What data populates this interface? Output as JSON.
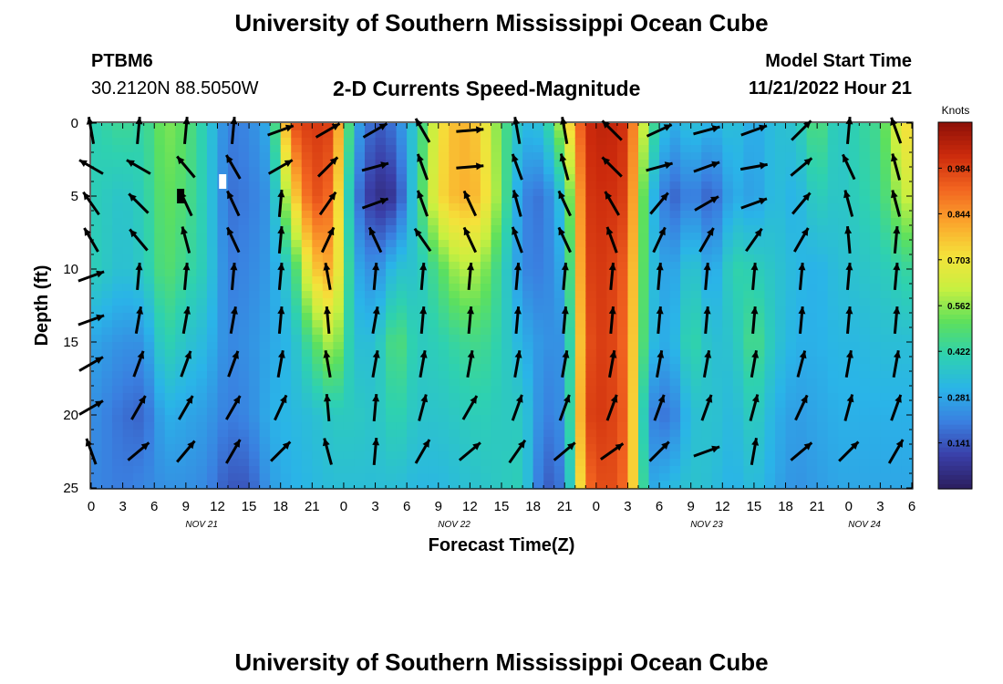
{
  "header": {
    "title": "University of Southern Mississippi Ocean Cube",
    "station_id": "PTBM6",
    "coordinates": "30.2120N  88.5050W",
    "plot_title": "2-D Currents Speed-Magnitude",
    "model_start_label": "Model Start Time",
    "model_start_value": "11/21/2022 Hour 21"
  },
  "footer": {
    "title": "University of Southern Mississippi Ocean Cube"
  },
  "chart_data": {
    "type": "heatmap",
    "title": "2-D Currents Speed-Magnitude",
    "xlabel": "Forecast Time(Z)",
    "ylabel": "Depth (ft)",
    "x_unit": "hours since model start (11/21/2022 Hour 21)",
    "x_tick_labels": [
      "0",
      "3",
      "6",
      "9",
      "12",
      "15",
      "18",
      "21",
      "0",
      "3",
      "6",
      "9",
      "12",
      "15",
      "18",
      "21",
      "0",
      "3",
      "6",
      "9",
      "12",
      "15",
      "18",
      "21",
      "0",
      "3",
      "6"
    ],
    "date_labels": [
      {
        "label": "NOV 21",
        "hour": 10.5
      },
      {
        "label": "NOV 22",
        "hour": 34.5
      },
      {
        "label": "NOV 23",
        "hour": 58.5
      },
      {
        "label": "NOV 24",
        "hour": 73.5
      }
    ],
    "xlim": [
      0,
      78
    ],
    "ylim": [
      0,
      25
    ],
    "y_ticks": [
      0,
      5,
      10,
      15,
      20,
      25
    ],
    "y_inverted": true,
    "colorbar": {
      "label": "Knots",
      "tick_labels": [
        "0.984",
        "0.844",
        "0.703",
        "0.562",
        "0.422",
        "0.281",
        "0.141"
      ],
      "range": [
        0.0,
        1.125
      ],
      "colors": [
        "#2b1e5e",
        "#3a3fa8",
        "#3a7fe0",
        "#2ab4e8",
        "#2ed1b0",
        "#5de05d",
        "#c8f040",
        "#f5e23a",
        "#fba42c",
        "#f26420",
        "#cc2a0c",
        "#8c1008"
      ]
    },
    "speed_anchor_hours": [
      0,
      3,
      5,
      7,
      9,
      11,
      13,
      15,
      17,
      19,
      21,
      23,
      25,
      27,
      29,
      31,
      33,
      35,
      37,
      39,
      41,
      43,
      45,
      47,
      49,
      51,
      53,
      55,
      57,
      59,
      61,
      63,
      65,
      67,
      69,
      71,
      73,
      75,
      77,
      78
    ],
    "speed_profiles_depths": [
      0,
      5,
      10,
      15,
      20,
      25
    ],
    "speed_profiles": [
      [
        0.4,
        0.4,
        0.4,
        0.28,
        0.24,
        0.22
      ],
      [
        0.45,
        0.36,
        0.34,
        0.24,
        0.18,
        0.2
      ],
      [
        0.42,
        0.4,
        0.38,
        0.24,
        0.16,
        0.22
      ],
      [
        0.55,
        0.52,
        0.5,
        0.42,
        0.3,
        0.24
      ],
      [
        0.5,
        0.48,
        0.44,
        0.36,
        0.28,
        0.24
      ],
      [
        0.38,
        0.38,
        0.38,
        0.32,
        0.26,
        0.22
      ],
      [
        0.2,
        0.18,
        0.2,
        0.22,
        0.2,
        0.14
      ],
      [
        0.22,
        0.2,
        0.22,
        0.24,
        0.22,
        0.14
      ],
      [
        0.3,
        0.25,
        0.26,
        0.28,
        0.3,
        0.26
      ],
      [
        0.95,
        0.7,
        0.4,
        0.32,
        0.32,
        0.3
      ],
      [
        1.0,
        0.97,
        0.75,
        0.48,
        0.34,
        0.32
      ],
      [
        0.98,
        0.9,
        0.82,
        0.62,
        0.38,
        0.34
      ],
      [
        0.3,
        0.22,
        0.3,
        0.34,
        0.38,
        0.34
      ],
      [
        0.14,
        0.05,
        0.22,
        0.34,
        0.36,
        0.34
      ],
      [
        0.2,
        0.08,
        0.35,
        0.5,
        0.42,
        0.34
      ],
      [
        0.4,
        0.42,
        0.36,
        0.38,
        0.36,
        0.32
      ],
      [
        0.7,
        0.72,
        0.48,
        0.4,
        0.36,
        0.32
      ],
      [
        0.8,
        0.8,
        0.6,
        0.44,
        0.38,
        0.34
      ],
      [
        0.75,
        0.78,
        0.58,
        0.46,
        0.4,
        0.36
      ],
      [
        0.5,
        0.52,
        0.42,
        0.4,
        0.38,
        0.38
      ],
      [
        0.32,
        0.22,
        0.22,
        0.3,
        0.38,
        0.4
      ],
      [
        0.35,
        0.18,
        0.2,
        0.24,
        0.2,
        0.14
      ],
      [
        0.65,
        0.38,
        0.3,
        0.24,
        0.24,
        0.2
      ],
      [
        1.02,
        1.0,
        0.98,
        0.95,
        0.98,
        0.9
      ],
      [
        1.05,
        1.02,
        1.0,
        1.0,
        1.0,
        0.98
      ],
      [
        1.0,
        0.98,
        0.92,
        0.9,
        0.92,
        0.9
      ],
      [
        0.5,
        0.36,
        0.36,
        0.34,
        0.22,
        0.28
      ],
      [
        0.28,
        0.15,
        0.25,
        0.28,
        0.18,
        0.32
      ],
      [
        0.35,
        0.22,
        0.38,
        0.44,
        0.34,
        0.36
      ],
      [
        0.3,
        0.15,
        0.26,
        0.34,
        0.36,
        0.34
      ],
      [
        0.35,
        0.3,
        0.42,
        0.36,
        0.32,
        0.3
      ],
      [
        0.28,
        0.26,
        0.4,
        0.48,
        0.4,
        0.34
      ],
      [
        0.34,
        0.34,
        0.36,
        0.36,
        0.3,
        0.28
      ],
      [
        0.36,
        0.3,
        0.32,
        0.3,
        0.26,
        0.24
      ],
      [
        0.5,
        0.4,
        0.3,
        0.3,
        0.28,
        0.26
      ],
      [
        0.36,
        0.36,
        0.34,
        0.32,
        0.3,
        0.28
      ],
      [
        0.42,
        0.4,
        0.36,
        0.32,
        0.3,
        0.28
      ],
      [
        0.46,
        0.44,
        0.38,
        0.34,
        0.3,
        0.28
      ],
      [
        0.7,
        0.6,
        0.42,
        0.34,
        0.3,
        0.28
      ],
      [
        0.74,
        0.64,
        0.44,
        0.34,
        0.3,
        0.28
      ]
    ],
    "vector_hours": [
      0,
      4.5,
      9,
      13.5,
      18,
      22.5,
      27,
      31.5,
      36,
      40.5,
      45,
      49.5,
      54,
      58.5,
      63,
      67.5,
      72,
      76.5
    ],
    "vector_depths": [
      0.5,
      3,
      5.5,
      8,
      10.5,
      13.5,
      16.5,
      19.5,
      22.5
    ],
    "vectors_deg": [
      [
        350,
        300,
        325,
        330,
        70,
        70,
        60,
        60,
        340
      ],
      [
        5,
        300,
        315,
        320,
        5,
        10,
        20,
        30,
        50
      ],
      [
        5,
        320,
        335,
        345,
        5,
        10,
        20,
        30,
        40
      ],
      [
        5,
        330,
        335,
        335,
        5,
        10,
        20,
        30,
        30
      ],
      [
        70,
        60,
        5,
        5,
        5,
        5,
        10,
        25,
        45
      ],
      [
        60,
        45,
        35,
        25,
        350,
        355,
        350,
        355,
        345
      ],
      [
        60,
        75,
        70,
        335,
        5,
        10,
        10,
        5,
        5
      ],
      [
        330,
        340,
        340,
        325,
        5,
        5,
        10,
        15,
        30
      ],
      [
        85,
        85,
        335,
        335,
        5,
        5,
        10,
        30,
        50
      ],
      [
        350,
        340,
        345,
        340,
        5,
        5,
        10,
        20,
        35
      ],
      [
        350,
        345,
        335,
        335,
        5,
        5,
        10,
        20,
        50
      ],
      [
        315,
        315,
        330,
        340,
        5,
        5,
        10,
        20,
        55
      ],
      [
        65,
        75,
        40,
        25,
        5,
        5,
        10,
        20,
        45
      ],
      [
        75,
        70,
        60,
        30,
        5,
        5,
        10,
        20,
        70
      ],
      [
        70,
        80,
        70,
        35,
        5,
        5,
        10,
        15,
        10
      ],
      [
        45,
        50,
        40,
        30,
        5,
        5,
        15,
        25,
        50
      ],
      [
        5,
        335,
        345,
        355,
        5,
        5,
        10,
        15,
        45
      ],
      [
        340,
        345,
        345,
        5,
        5,
        5,
        10,
        20,
        30
      ]
    ],
    "value_markers": [
      {
        "hour": 8.5,
        "depth": 5,
        "color": "#000000"
      },
      {
        "hour": 12.5,
        "depth": 4,
        "color": "#ffffff"
      }
    ]
  }
}
